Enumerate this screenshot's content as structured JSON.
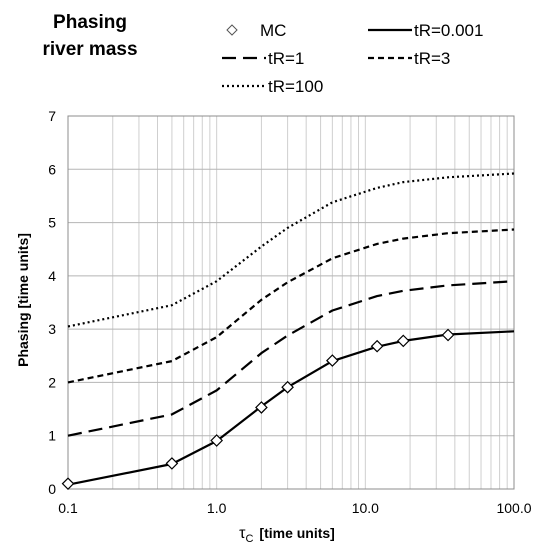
{
  "chart_data": {
    "type": "line",
    "title_lines": [
      "Phasing",
      "river mass"
    ],
    "xlabel": {
      "symbol": "τ",
      "subscript": "C",
      "text": "[time units]"
    },
    "ylabel": "Phasing  [time units]",
    "xscale": "log",
    "xlim": [
      0.1,
      100
    ],
    "ylim": [
      0,
      7
    ],
    "x_ticks": [
      0.1,
      1,
      10,
      100
    ],
    "x_tick_labels": [
      "0.1",
      "1.0",
      "10.0",
      "100.0"
    ],
    "y_ticks": [
      0,
      1,
      2,
      3,
      4,
      5,
      6,
      7
    ],
    "y_tick_labels": [
      "0",
      "1",
      "2",
      "3",
      "4",
      "5",
      "6",
      "7"
    ],
    "grid": "on (log minor vertical, major horizontal)",
    "legend_position": "top",
    "series": [
      {
        "name": "MC",
        "style": "markers",
        "marker": "diamond",
        "x": [
          0.1,
          0.5,
          1.0,
          2.0,
          3.0,
          6.0,
          12.0,
          18.0,
          36.0
        ],
        "y": [
          0.1,
          0.48,
          0.91,
          1.53,
          1.91,
          2.41,
          2.68,
          2.78,
          2.89
        ]
      },
      {
        "name": "tR=0.001",
        "style": "solid",
        "x": [
          0.1,
          0.5,
          1.0,
          2.0,
          3.0,
          6.0,
          12.0,
          18.0,
          36.0,
          100.0
        ],
        "y": [
          0.08,
          0.47,
          0.9,
          1.55,
          1.91,
          2.4,
          2.67,
          2.78,
          2.9,
          2.96
        ]
      },
      {
        "name": "tR=1",
        "style": "longdash",
        "x": [
          0.1,
          0.5,
          1.0,
          2.0,
          3.0,
          6.0,
          12.0,
          18.0,
          36.0,
          100.0
        ],
        "y": [
          1.0,
          1.4,
          1.85,
          2.55,
          2.88,
          3.35,
          3.62,
          3.72,
          3.82,
          3.9
        ]
      },
      {
        "name": "tR=3",
        "style": "shortdash",
        "x": [
          0.1,
          0.5,
          1.0,
          2.0,
          3.0,
          6.0,
          12.0,
          18.0,
          36.0,
          100.0
        ],
        "y": [
          2.0,
          2.4,
          2.85,
          3.55,
          3.88,
          4.33,
          4.6,
          4.7,
          4.8,
          4.87
        ]
      },
      {
        "name": "tR=100",
        "style": "dotted",
        "x": [
          0.1,
          0.5,
          1.0,
          2.0,
          3.0,
          6.0,
          12.0,
          18.0,
          36.0,
          100.0
        ],
        "y": [
          3.05,
          3.45,
          3.9,
          4.55,
          4.9,
          5.38,
          5.65,
          5.76,
          5.85,
          5.92
        ]
      }
    ]
  }
}
